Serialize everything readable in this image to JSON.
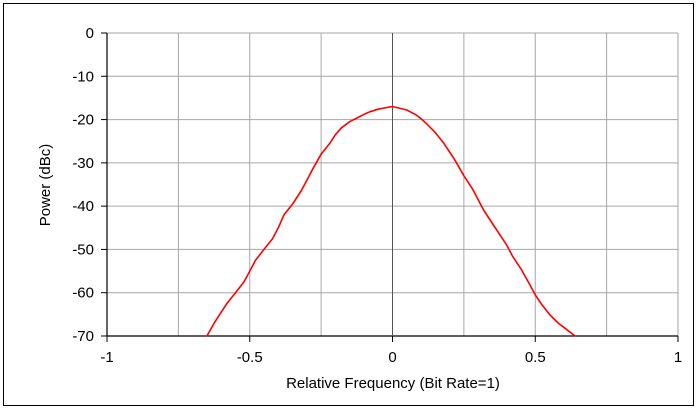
{
  "chart_data": {
    "type": "line",
    "title": "",
    "xlabel": "Relative Frequency (Bit Rate=1)",
    "ylabel": "Power (dBc)",
    "xlim": [
      -1,
      1
    ],
    "ylim": [
      -70,
      0
    ],
    "x_ticks": [
      -1,
      -0.5,
      0,
      0.5,
      1
    ],
    "x_tick_labels": [
      "-1",
      "-0.5",
      "0",
      "0.5",
      "1"
    ],
    "y_ticks": [
      0,
      -10,
      -20,
      -30,
      -40,
      -50,
      -60,
      -70
    ],
    "y_tick_labels": [
      "0",
      "-10",
      "-20",
      "-30",
      "-40",
      "-50",
      "-60",
      "-70"
    ],
    "x_gridlines": [
      -1,
      -0.75,
      -0.5,
      -0.25,
      0,
      0.25,
      0.5,
      0.75,
      1
    ],
    "grid": true,
    "legend": "none",
    "series": [
      {
        "color": "#ff0000",
        "x": [
          -0.65,
          -0.62,
          -0.6,
          -0.58,
          -0.55,
          -0.52,
          -0.5,
          -0.48,
          -0.45,
          -0.42,
          -0.4,
          -0.38,
          -0.35,
          -0.32,
          -0.3,
          -0.28,
          -0.25,
          -0.22,
          -0.2,
          -0.18,
          -0.15,
          -0.12,
          -0.1,
          -0.08,
          -0.05,
          -0.02,
          0,
          0.02,
          0.05,
          0.08,
          0.1,
          0.12,
          0.15,
          0.18,
          0.2,
          0.22,
          0.25,
          0.28,
          0.3,
          0.32,
          0.35,
          0.38,
          0.4,
          0.42,
          0.45,
          0.48,
          0.5,
          0.52,
          0.55,
          0.58,
          0.6,
          0.62,
          0.64
        ],
        "y": [
          -70,
          -66.5,
          -64.5,
          -62.5,
          -60,
          -57.5,
          -55,
          -52.5,
          -50,
          -47.5,
          -45,
          -42,
          -39.5,
          -36.5,
          -34,
          -31.5,
          -28,
          -25.5,
          -23.5,
          -22,
          -20.5,
          -19.5,
          -18.8,
          -18.2,
          -17.6,
          -17.2,
          -17,
          -17.3,
          -17.8,
          -18.8,
          -19.8,
          -21,
          -23,
          -25.5,
          -27.5,
          -29.5,
          -33,
          -36,
          -38.5,
          -41,
          -44,
          -47,
          -49,
          -51.5,
          -54.5,
          -58,
          -60.5,
          -62.5,
          -65,
          -67,
          -68,
          -69,
          -70
        ]
      }
    ]
  }
}
